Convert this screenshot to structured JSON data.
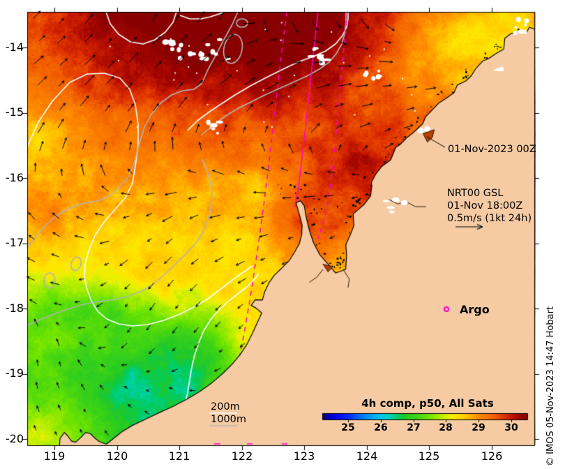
{
  "axes": {
    "x_ticks": [
      "119",
      "120",
      "121",
      "122",
      "123",
      "124",
      "125",
      "126"
    ],
    "y_ticks": [
      "-14",
      "-15",
      "-16",
      "-17",
      "-18",
      "-19",
      "-20"
    ]
  },
  "annotations": {
    "obs_time": "01-Nov-2023 00Z",
    "model_name": "NRT00 GSL",
    "model_time": "01-Nov 18:00Z",
    "vector_scale": "0.5m/s (1kt 24h)",
    "argo": "Argo",
    "contour_200m": "200m",
    "contour_1000m": "1000m"
  },
  "colorbar": {
    "title": "4h comp, p50, All Sats",
    "ticks": [
      "25",
      "26",
      "27",
      "28",
      "29",
      "30"
    ],
    "min": 24.2,
    "max": 30.5,
    "palette": [
      [
        0.0,
        "#00007d"
      ],
      [
        0.06,
        "#0000e8"
      ],
      [
        0.127,
        "#0028ff"
      ],
      [
        0.2,
        "#0080ff"
      ],
      [
        0.286,
        "#00c8f0"
      ],
      [
        0.33,
        "#00d2b4"
      ],
      [
        0.37,
        "#00cc60"
      ],
      [
        0.4,
        "#20c828"
      ],
      [
        0.46,
        "#40d414"
      ],
      [
        0.52,
        "#70e400"
      ],
      [
        0.58,
        "#b8ee00"
      ],
      [
        0.62,
        "#ecf000"
      ],
      [
        0.65,
        "#ffe600"
      ],
      [
        0.7,
        "#ffc800"
      ],
      [
        0.762,
        "#ff8c00"
      ],
      [
        0.84,
        "#f26000"
      ],
      [
        0.89,
        "#dd3000"
      ],
      [
        0.921,
        "#c41800"
      ],
      [
        0.96,
        "#a00400"
      ],
      [
        1.0,
        "#880000"
      ]
    ]
  },
  "credit": "© IMOS 05-Nov-2023 14:47 Hobart",
  "colors": {
    "land": "#f6cba3",
    "coast": "#000000",
    "swath": "#ff00cc",
    "contour_200m": "#ffffff",
    "contour_1000m": "#b4b4b4"
  }
}
